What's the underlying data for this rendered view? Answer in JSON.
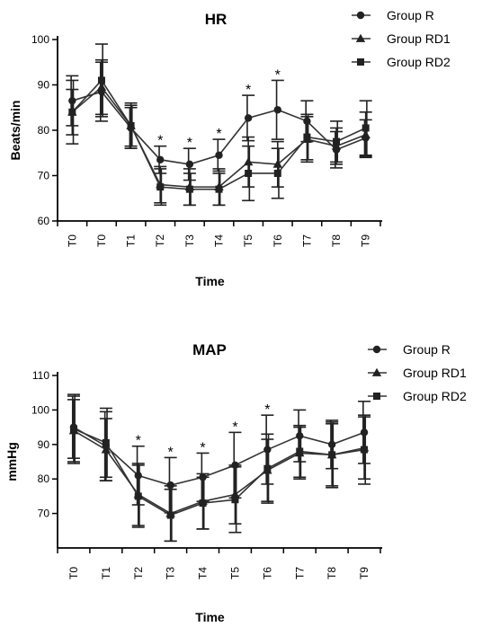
{
  "chart_data": [
    {
      "type": "line",
      "title": "HR",
      "xlabel": "Time",
      "ylabel": "Beats/min",
      "ylim": [
        60,
        100
      ],
      "yticks": [
        60,
        70,
        80,
        90,
        100
      ],
      "categories": [
        "T0",
        "T0",
        "T1",
        "T2",
        "T3",
        "T4",
        "T5",
        "T6",
        "T7",
        "T8",
        "T9"
      ],
      "legend_position": "top-right",
      "series": [
        {
          "name": "Group R",
          "marker": "circle",
          "values": [
            86.5,
            88.5,
            80.5,
            73.5,
            72.5,
            74.5,
            82.7,
            84.5,
            82.0,
            75.7,
            78.3
          ],
          "errors": [
            5.5,
            6.5,
            4.5,
            3.0,
            3.5,
            3.5,
            5.0,
            6.5,
            4.5,
            4.0,
            4.0
          ]
        },
        {
          "name": "Group RD1",
          "marker": "triangle",
          "values": [
            84.0,
            89.5,
            81.0,
            68.0,
            67.5,
            67.5,
            73.0,
            72.5,
            78.0,
            76.5,
            79.0
          ],
          "errors": [
            5.0,
            6.0,
            5.0,
            4.0,
            4.0,
            4.0,
            5.5,
            5.0,
            5.0,
            4.0,
            5.0
          ]
        },
        {
          "name": "Group RD2",
          "marker": "square",
          "values": [
            84.0,
            91.0,
            81.0,
            67.5,
            67.0,
            67.0,
            70.5,
            70.5,
            78.5,
            77.5,
            80.5
          ],
          "errors": [
            7.0,
            8.0,
            4.5,
            4.0,
            3.5,
            3.5,
            6.0,
            5.5,
            5.0,
            4.5,
            6.0
          ]
        }
      ],
      "significance": [
        "",
        "",
        "",
        "*",
        "*",
        "*",
        "*",
        "*",
        "",
        "",
        ""
      ]
    },
    {
      "type": "line",
      "title": "MAP",
      "xlabel": "Time",
      "ylabel": "mmHg",
      "ylim": [
        60,
        110
      ],
      "yticks": [
        70,
        80,
        90,
        100,
        110
      ],
      "categories": [
        "T0",
        "T1",
        "T2",
        "T3",
        "T4",
        "T5",
        "T6",
        "T7",
        "T8",
        "T9"
      ],
      "legend_position": "top-right",
      "series": [
        {
          "name": "Group R",
          "marker": "circle",
          "values": [
            95.0,
            89.5,
            81.0,
            78.2,
            80.5,
            84.0,
            88.5,
            92.5,
            90.0,
            93.5
          ],
          "errors": [
            9.0,
            10.0,
            8.5,
            8.0,
            7.0,
            9.5,
            10.0,
            7.5,
            7.0,
            9.0
          ]
        },
        {
          "name": "Group RD1",
          "marker": "triangle",
          "values": [
            94.0,
            88.5,
            75.5,
            70.0,
            73.5,
            75.5,
            82.5,
            87.5,
            87.0,
            89.0
          ],
          "errors": [
            9.0,
            9.0,
            9.0,
            8.0,
            8.0,
            8.5,
            9.0,
            7.5,
            9.0,
            9.0
          ]
        },
        {
          "name": "Group RD2",
          "marker": "square",
          "values": [
            94.5,
            90.5,
            75.0,
            69.5,
            73.0,
            74.0,
            83.0,
            88.0,
            87.0,
            88.5
          ],
          "errors": [
            10.0,
            10.0,
            9.0,
            7.5,
            7.5,
            9.5,
            10.0,
            7.5,
            9.5,
            10.0
          ]
        }
      ],
      "significance": [
        "",
        "",
        "*",
        "*",
        "*",
        "*",
        "*",
        "",
        "",
        ""
      ]
    }
  ]
}
